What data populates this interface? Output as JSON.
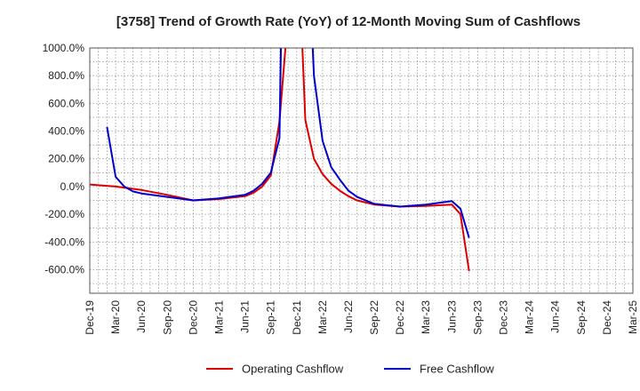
{
  "chart_data": {
    "type": "line",
    "title": "[3758]  Trend of Growth Rate (YoY) of 12-Month Moving Sum of Cashflows",
    "xlabel": "",
    "ylabel": "",
    "ylim": [
      -770,
      1000
    ],
    "y_ticks": [
      1000,
      800,
      600,
      400,
      200,
      0,
      -200,
      -400,
      -600
    ],
    "y_tick_labels": [
      "1000.0%",
      "800.0%",
      "600.0%",
      "400.0%",
      "200.0%",
      "0.0%",
      "-200.0%",
      "-400.0%",
      "-600.0%"
    ],
    "x_tick_labels": [
      "Dec-19",
      "Mar-20",
      "Jun-20",
      "Sep-20",
      "Dec-20",
      "Mar-21",
      "Jun-21",
      "Sep-21",
      "Dec-21",
      "Mar-22",
      "Jun-22",
      "Sep-22",
      "Dec-22",
      "Mar-23",
      "Jun-23",
      "Sep-23",
      "Dec-23",
      "Mar-24",
      "Jun-24",
      "Sep-24",
      "Dec-24",
      "Mar-25"
    ],
    "grid": true,
    "legend_position": "bottom-center",
    "series": [
      {
        "name": "Operating Cashflow",
        "color": "#dd0000",
        "points": [
          [
            0,
            15
          ],
          [
            3,
            0
          ],
          [
            6,
            -25
          ],
          [
            9,
            -60
          ],
          [
            12,
            -100
          ],
          [
            15,
            -90
          ],
          [
            18,
            -70
          ],
          [
            19,
            -45
          ],
          [
            20,
            0
          ],
          [
            21,
            80
          ],
          [
            22,
            470
          ],
          [
            24,
            2000
          ],
          [
            25,
            480
          ],
          [
            26,
            200
          ],
          [
            27,
            90
          ],
          [
            28,
            20
          ],
          [
            29,
            -30
          ],
          [
            30,
            -70
          ],
          [
            31,
            -100
          ],
          [
            33,
            -130
          ],
          [
            36,
            -145
          ],
          [
            39,
            -140
          ],
          [
            42,
            -130
          ],
          [
            43,
            -200
          ],
          [
            44,
            -610
          ]
        ]
      },
      {
        "name": "Free Cashflow",
        "color": "#0000cc",
        "points": [
          [
            2,
            430
          ],
          [
            3,
            70
          ],
          [
            4,
            0
          ],
          [
            5,
            -35
          ],
          [
            6,
            -50
          ],
          [
            9,
            -75
          ],
          [
            12,
            -100
          ],
          [
            15,
            -85
          ],
          [
            18,
            -60
          ],
          [
            19,
            -30
          ],
          [
            20,
            20
          ],
          [
            21,
            100
          ],
          [
            22,
            350
          ],
          [
            22.3,
            1500
          ],
          [
            25.5,
            1500
          ],
          [
            26,
            800
          ],
          [
            27,
            330
          ],
          [
            28,
            140
          ],
          [
            29,
            50
          ],
          [
            30,
            -30
          ],
          [
            31,
            -75
          ],
          [
            33,
            -125
          ],
          [
            36,
            -145
          ],
          [
            39,
            -130
          ],
          [
            42,
            -105
          ],
          [
            43,
            -160
          ],
          [
            44,
            -370
          ]
        ]
      }
    ]
  }
}
